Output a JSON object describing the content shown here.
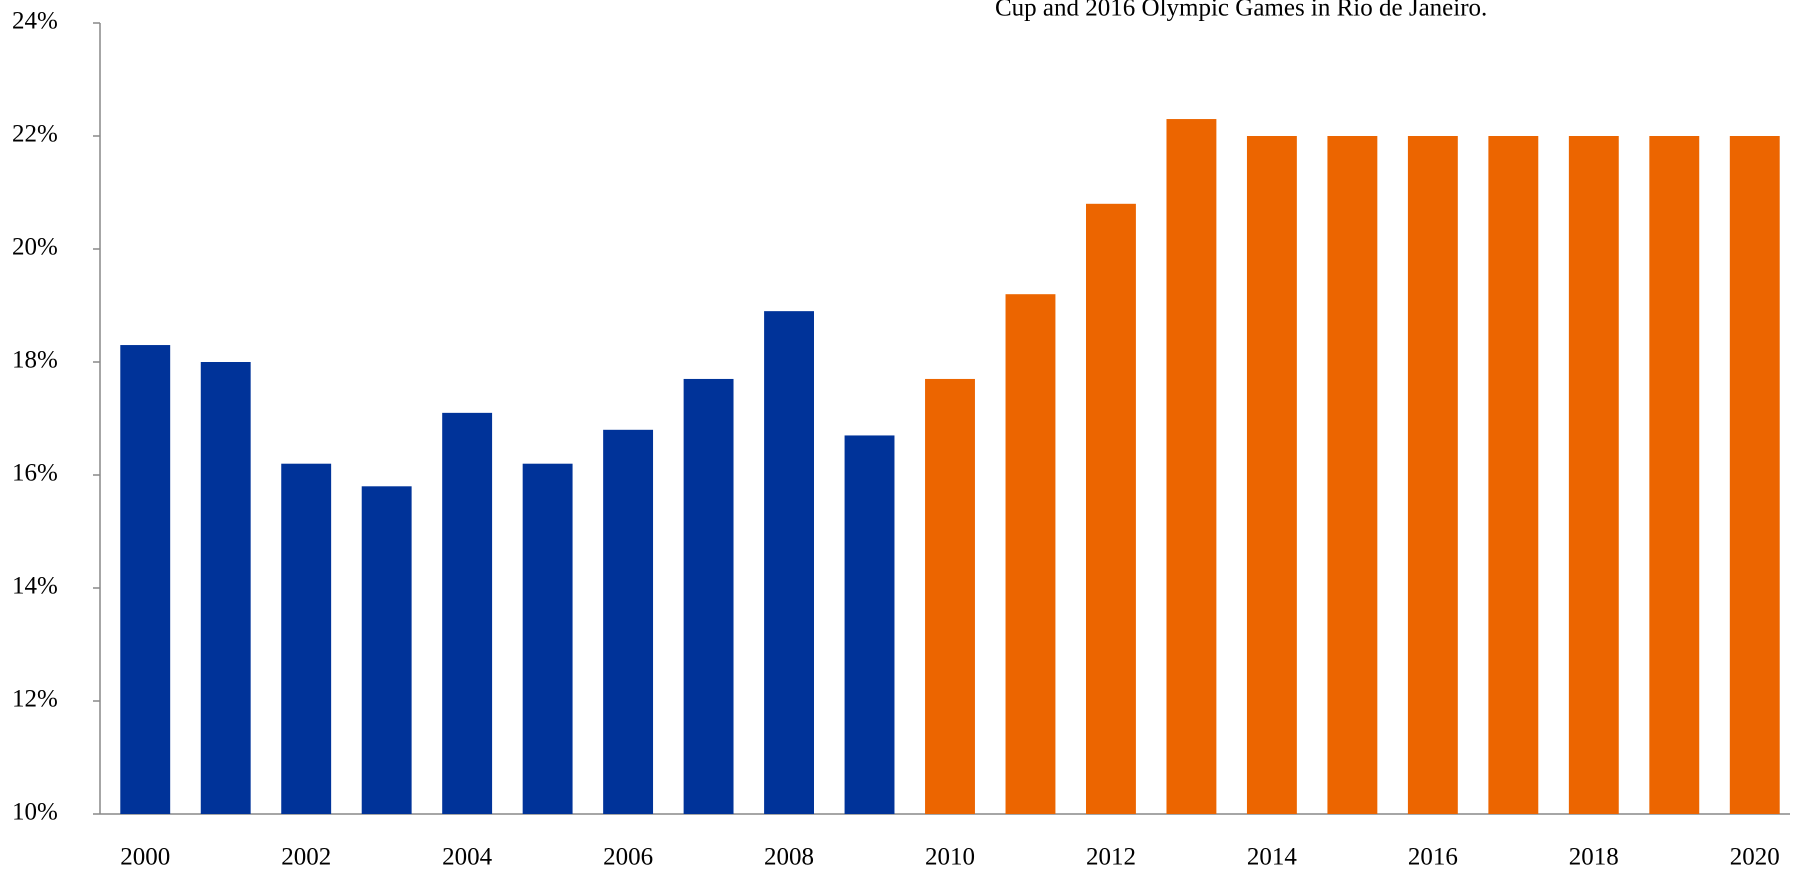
{
  "chart_data": {
    "type": "bar",
    "annotation": "Cup and 2016 Olympic Games in Rio de Janeiro.",
    "categories": [
      "2000",
      null,
      "2002",
      null,
      "2004",
      null,
      "2006",
      null,
      "2008",
      null,
      "2010",
      null,
      "2012",
      null,
      "2014",
      null,
      "2016",
      null,
      "2018",
      null,
      "2020"
    ],
    "values": [
      18.3,
      18.0,
      16.2,
      15.8,
      17.1,
      16.2,
      16.8,
      17.7,
      18.9,
      16.7,
      17.7,
      19.2,
      20.8,
      22.3,
      22,
      22,
      22,
      22,
      22,
      22,
      22
    ],
    "colors": [
      "#003399",
      "#003399",
      "#003399",
      "#003399",
      "#003399",
      "#003399",
      "#003399",
      "#003399",
      "#003399",
      "#003399",
      "#ec6500",
      "#ec6500",
      "#ec6500",
      "#ec6500",
      "#ec6500",
      "#ec6500",
      "#ec6500",
      "#ec6500",
      "#ec6500",
      "#ec6500",
      "#ec6500"
    ],
    "ylim": [
      10,
      24
    ],
    "yticks": [
      {
        "value": 10,
        "label": "10%"
      },
      {
        "value": 12,
        "label": "12%"
      },
      {
        "value": 14,
        "label": "14%"
      },
      {
        "value": 16,
        "label": "16%"
      },
      {
        "value": 18,
        "label": "18%"
      },
      {
        "value": 20,
        "label": "20%"
      },
      {
        "value": 22,
        "label": "22%"
      },
      {
        "value": 24,
        "label": "24%"
      }
    ],
    "grid": false
  }
}
